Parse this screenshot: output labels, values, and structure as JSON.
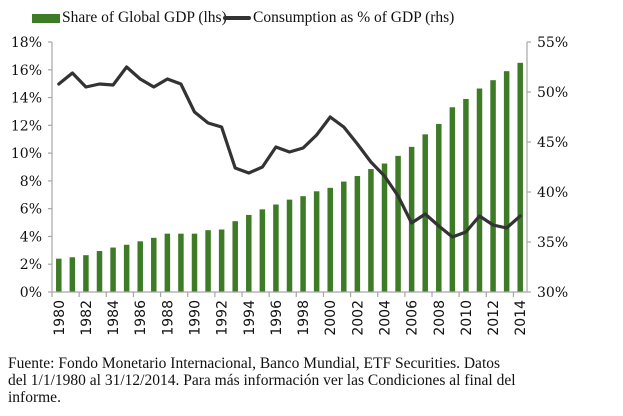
{
  "chart_data": {
    "type": "bar+line",
    "title": "",
    "xlabel": "",
    "ylabel_left": "Share of Global GDP",
    "ylabel_right": "Consumption as % of GDP",
    "categories": [
      "1980",
      "1981",
      "1982",
      "1983",
      "1984",
      "1985",
      "1986",
      "1987",
      "1988",
      "1989",
      "1990",
      "1991",
      "1992",
      "1993",
      "1994",
      "1995",
      "1996",
      "1997",
      "1998",
      "1999",
      "2000",
      "2001",
      "2002",
      "2003",
      "2004",
      "2005",
      "2006",
      "2007",
      "2008",
      "2009",
      "2010",
      "2011",
      "2012",
      "2013",
      "2014"
    ],
    "x_tick_labels": [
      "1980",
      "1982",
      "1984",
      "1986",
      "1988",
      "1990",
      "1992",
      "1994",
      "1996",
      "1998",
      "2000",
      "2002",
      "2004",
      "2006",
      "2008",
      "2010",
      "2012",
      "2014"
    ],
    "series": [
      {
        "name": "Share of Global GDP (lhs)",
        "type": "bar",
        "axis": "left",
        "color": "#3e7b27",
        "values": [
          2.4,
          2.5,
          2.65,
          2.95,
          3.2,
          3.4,
          3.65,
          3.9,
          4.2,
          4.2,
          4.2,
          4.45,
          4.5,
          5.1,
          5.55,
          5.95,
          6.3,
          6.65,
          6.9,
          7.25,
          7.5,
          7.95,
          8.35,
          8.85,
          9.25,
          9.8,
          10.45,
          11.35,
          12.1,
          13.3,
          13.9,
          14.65,
          15.25,
          15.9,
          16.5
        ]
      },
      {
        "name": "Consumption as % of GDP (rhs)",
        "type": "line",
        "axis": "right",
        "color": "#333333",
        "values": [
          50.8,
          51.9,
          50.5,
          50.8,
          50.7,
          52.5,
          51.3,
          50.5,
          51.3,
          50.8,
          48.0,
          46.9,
          46.5,
          42.4,
          41.9,
          42.5,
          44.5,
          44.0,
          44.4,
          45.7,
          47.5,
          46.5,
          44.8,
          43.0,
          41.6,
          39.6,
          36.9,
          37.8,
          36.6,
          35.5,
          36.0,
          37.6,
          36.7,
          36.4,
          37.6
        ]
      }
    ],
    "ylim_left": [
      0,
      18
    ],
    "yticks_left": [
      "0%",
      "2%",
      "4%",
      "6%",
      "8%",
      "10%",
      "12%",
      "14%",
      "16%",
      "18%"
    ],
    "ylim_right": [
      30,
      55
    ],
    "yticks_right": [
      "30%",
      "35%",
      "40%",
      "45%",
      "50%",
      "55%"
    ],
    "grid": false,
    "legend": "top"
  },
  "legend": {
    "bar_label": "Share of Global GDP (lhs)",
    "line_label": "Consumption as % of GDP (rhs)"
  },
  "source": {
    "line1": "Fuente: Fondo Monetario Internacional, Banco Mundial, ETF Securities. Datos",
    "line2": "del 1/1/1980 al 31/12/2014. Para más información ver las Condiciones al final del",
    "line3": "informe."
  }
}
